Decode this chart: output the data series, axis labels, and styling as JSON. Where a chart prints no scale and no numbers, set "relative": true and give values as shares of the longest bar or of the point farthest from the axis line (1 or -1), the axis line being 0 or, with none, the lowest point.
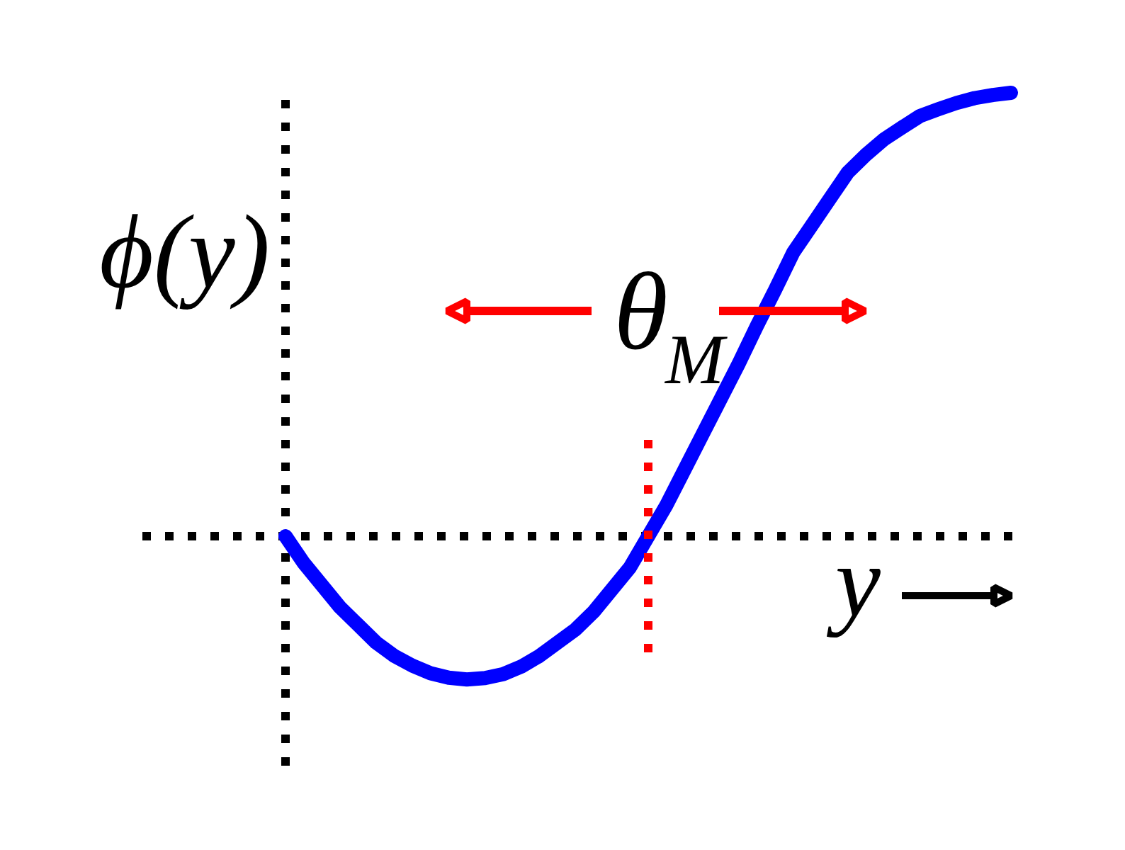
{
  "chart_data": {
    "type": "line",
    "relative": true,
    "xlabel": "y",
    "ylabel": "ϕ(y)",
    "categories": [
      null,
      null,
      null,
      null,
      null,
      null,
      null,
      null,
      null,
      null,
      null,
      null,
      null,
      null,
      null,
      null,
      null,
      null,
      null,
      null,
      null,
      null,
      null,
      null,
      null,
      null,
      null,
      null,
      null,
      null,
      null,
      null,
      null,
      null,
      null,
      null,
      null,
      null,
      null,
      null,
      null
    ],
    "series": [
      {
        "color": "#0000ff",
        "values": [
          0,
          -0.06,
          -0.11,
          -0.16,
          -0.2,
          -0.24,
          -0.27,
          -0.292,
          -0.309,
          -0.319,
          -0.323,
          -0.32,
          -0.311,
          -0.294,
          -0.27,
          -0.24,
          -0.21,
          -0.17,
          -0.12,
          -0.07,
          0,
          0.07,
          0.15,
          0.23,
          0.31,
          0.39,
          0.475,
          0.556,
          0.64,
          0.7,
          0.76,
          0.82,
          0.86,
          0.895,
          0.922,
          0.948,
          0.963,
          0.977,
          0.988,
          0.995,
          1
        ]
      }
    ],
    "annotations": [
      "θ$_{M}$"
    ],
    "line_style": "solid"
  }
}
